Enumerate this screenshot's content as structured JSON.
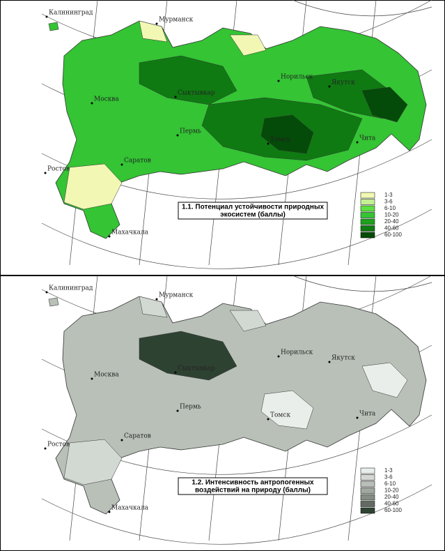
{
  "maps": [
    {
      "title_line1": "1.1. Потенциал устойчивости природных",
      "title_line2": "экосистем (баллы)",
      "legend": [
        {
          "label": "1-3",
          "color": "#f2f8b4"
        },
        {
          "label": "3-6",
          "color": "#c4f094"
        },
        {
          "label": "6-10",
          "color": "#5ee040"
        },
        {
          "label": "10-20",
          "color": "#34c434"
        },
        {
          "label": "20-40",
          "color": "#1fa01f"
        },
        {
          "label": "40-60",
          "color": "#0f7a12"
        },
        {
          "label": "60-100",
          "color": "#044a08"
        }
      ],
      "cities": [
        {
          "label": "Калининград"
        },
        {
          "label": "Мурманск"
        },
        {
          "label": "Норильск"
        },
        {
          "label": "Якутск"
        },
        {
          "label": "Москва"
        },
        {
          "label": "Сыктывкар"
        },
        {
          "label": "Пермь"
        },
        {
          "label": "Томск"
        },
        {
          "label": "Чита"
        },
        {
          "label": "Саратов"
        },
        {
          "label": "Ростов"
        },
        {
          "label": "Махачкала"
        }
      ]
    },
    {
      "title_line1": "1.2. Интенсивность антропогенных",
      "title_line2": "воздействий на природу (баллы)",
      "legend": [
        {
          "label": "1-3",
          "color": "#eaeeea"
        },
        {
          "label": "3-6",
          "color": "#d2d8d2"
        },
        {
          "label": "6-10",
          "color": "#b8c0b8"
        },
        {
          "label": "10-20",
          "color": "#a0a8a0"
        },
        {
          "label": "20-40",
          "color": "#848c84"
        },
        {
          "label": "40-60",
          "color": "#626a62"
        },
        {
          "label": "60-100",
          "color": "#2e4232"
        }
      ],
      "cities": [
        {
          "label": "Калининград"
        },
        {
          "label": "Мурманск"
        },
        {
          "label": "Норильск"
        },
        {
          "label": "Якутск"
        },
        {
          "label": "Москва"
        },
        {
          "label": "Сыктывкар"
        },
        {
          "label": "Пермь"
        },
        {
          "label": "Томск"
        },
        {
          "label": "Чита"
        },
        {
          "label": "Саратов"
        },
        {
          "label": "Ростов"
        },
        {
          "label": "Махачкала"
        }
      ]
    }
  ]
}
